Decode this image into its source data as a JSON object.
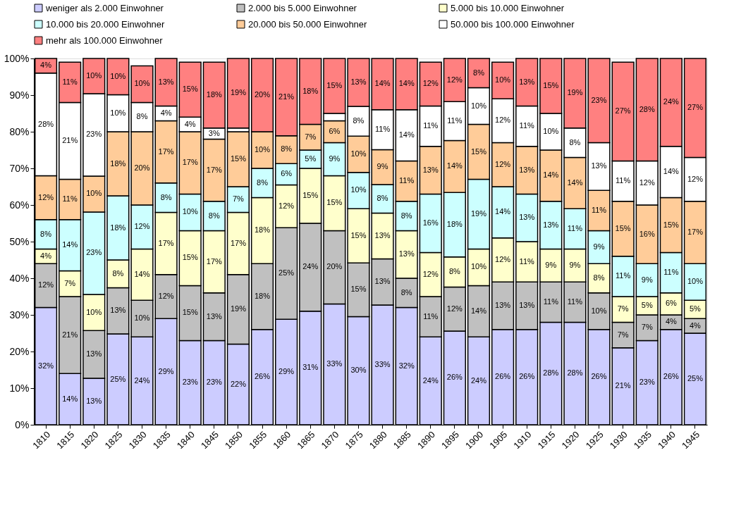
{
  "chart_data": {
    "type": "bar",
    "stacked": true,
    "legend": "top",
    "categories": [
      "1810",
      "1815",
      "1820",
      "1825",
      "1830",
      "1835",
      "1840",
      "1845",
      "1850",
      "1855",
      "1860",
      "1865",
      "1870",
      "1875",
      "1880",
      "1885",
      "1890",
      "1895",
      "1900",
      "1905",
      "1910",
      "1915",
      "1920",
      "1925",
      "1930",
      "1935",
      "1940",
      "1945"
    ],
    "ylim": [
      0,
      100
    ],
    "yticks": [
      {
        "value": 0,
        "label": "0%"
      },
      {
        "value": 10,
        "label": "10%"
      },
      {
        "value": 20,
        "label": "20%"
      },
      {
        "value": 30,
        "label": "30%"
      },
      {
        "value": 40,
        "label": "40%"
      },
      {
        "value": 50,
        "label": "50%"
      },
      {
        "value": 60,
        "label": "60%"
      },
      {
        "value": 70,
        "label": "70%"
      },
      {
        "value": 80,
        "label": "80%"
      },
      {
        "value": 90,
        "label": "90%"
      },
      {
        "value": 100,
        "label": "100%"
      }
    ],
    "series": [
      {
        "name": "weniger als 2.000 Einwohner",
        "color": "#ccccff",
        "values": [
          32,
          14,
          12.7,
          24.8,
          24,
          29,
          23,
          23,
          22,
          26,
          28.8,
          31,
          33,
          29.5,
          32.7,
          32,
          24,
          25.6,
          24,
          26,
          26,
          28,
          28,
          26,
          21,
          23,
          26,
          25
        ],
        "value_labels": [
          "32%",
          "14%",
          "13%",
          "25%",
          "24%",
          "29%",
          "23%",
          "23%",
          "22%",
          "26%",
          "29%",
          "31%",
          "33%",
          "30%",
          "33%",
          "32%",
          "24%",
          "26%",
          "24%",
          "26%",
          "26%",
          "28%",
          "28%",
          "26%",
          "21%",
          "23%",
          "26%",
          "25%"
        ]
      },
      {
        "name": "2.000 bis 5.000 Einwohner",
        "color": "#c0c0c0",
        "values": [
          12,
          21,
          13,
          12.6,
          10,
          12,
          15,
          13,
          19,
          18,
          25,
          24,
          20,
          14.7,
          12.6,
          8,
          11,
          12,
          14,
          13,
          13,
          11,
          11,
          10,
          7,
          7,
          4,
          4
        ],
        "value_labels": [
          "12%",
          "21%",
          "13%",
          "13%",
          "10%",
          "12%",
          "15%",
          "13%",
          "19%",
          "18%",
          "25%",
          "24%",
          "20%",
          "15%",
          "13%",
          "8%",
          "11%",
          "12%",
          "14%",
          "13%",
          "13%",
          "11%",
          "11%",
          "10%",
          "7%",
          "7%",
          "4%",
          "4%"
        ]
      },
      {
        "name": "5.000 bis 10.000 Einwohner",
        "color": "#ffffcc",
        "values": [
          4,
          7,
          9.9,
          7.6,
          14,
          17,
          15,
          17,
          17,
          18,
          11.7,
          15,
          15,
          14.8,
          12.5,
          13,
          12,
          8.2,
          10,
          12,
          11,
          9,
          9,
          8,
          7,
          5,
          6,
          5
        ],
        "value_labels": [
          "4%",
          "7%",
          "10%",
          "8%",
          "14%",
          "17%",
          "15%",
          "17%",
          "17%",
          "18%",
          "12%",
          "15%",
          "15%",
          "15%",
          "13%",
          "13%",
          "12%",
          "8%",
          "10%",
          "12%",
          "11%",
          "9%",
          "9%",
          "8%",
          "7%",
          "5%",
          "6%",
          "5%"
        ]
      },
      {
        "name": "10.000 bis 20.000 Einwohner",
        "color": "#ccffff",
        "values": [
          8,
          14,
          22.5,
          17.5,
          12,
          8,
          10,
          8,
          7,
          8,
          5.8,
          5,
          9,
          9.9,
          7.8,
          8,
          16,
          17.6,
          19,
          14,
          13,
          13,
          11,
          9,
          11,
          9,
          11,
          10
        ],
        "value_labels": [
          "8%",
          "14%",
          "23%",
          "18%",
          "12%",
          "8%",
          "10%",
          "8%",
          "7%",
          "8%",
          "6%",
          "5%",
          "9%",
          "10%",
          "8%",
          "8%",
          "16%",
          "18%",
          "19%",
          "14%",
          "13%",
          "13%",
          "11%",
          "9%",
          "11%",
          "9%",
          "11%",
          "10%"
        ]
      },
      {
        "name": "20.000 bis 50.000 Einwohner",
        "color": "#ffcc99",
        "values": [
          12,
          11,
          9.8,
          17.5,
          20,
          17,
          17,
          17,
          15,
          10,
          7.6,
          7,
          6,
          9.9,
          9.5,
          11,
          13,
          14.2,
          15,
          12,
          13,
          14,
          14,
          11,
          15,
          16,
          15,
          17
        ],
        "value_labels": [
          "12%",
          "11%",
          "10%",
          "18%",
          "20%",
          "17%",
          "17%",
          "17%",
          "15%",
          "10%",
          "8%",
          "7%",
          "6%",
          "10%",
          "9%",
          "11%",
          "13%",
          "14%",
          "15%",
          "12%",
          "13%",
          "14%",
          "14%",
          "11%",
          "15%",
          "16%",
          "15%",
          "17%"
        ]
      },
      {
        "name": "50.000 bis 100.000 Einwohner",
        "color": "#ffffff",
        "values": [
          28,
          21,
          22.5,
          10.1,
          8,
          4,
          4,
          3,
          1,
          null,
          null,
          null,
          2,
          8.1,
          10.9,
          14,
          11,
          10.6,
          10,
          12,
          11,
          10,
          8,
          13,
          11,
          12,
          14,
          12
        ],
        "value_labels": [
          "28%",
          "21%",
          "23%",
          "10%",
          "8%",
          "4%",
          "4%",
          "3%",
          null,
          null,
          null,
          null,
          null,
          "8%",
          "11%",
          "14%",
          "11%",
          "11%",
          "10%",
          "12%",
          "11%",
          "10%",
          "8%",
          "13%",
          "11%",
          "12%",
          "14%",
          "12%"
        ]
      },
      {
        "name": "mehr als 100.000 Einwohner",
        "color": "#ff8080",
        "values": [
          4,
          11,
          9.6,
          9.9,
          10,
          13,
          15,
          18,
          19,
          20,
          21.1,
          18,
          15,
          13.1,
          14,
          14,
          12,
          11.8,
          8,
          10,
          13,
          15,
          19,
          23,
          27,
          28,
          24,
          27
        ],
        "value_labels": [
          "4%",
          "11%",
          "10%",
          "10%",
          "10%",
          "13%",
          "15%",
          "18%",
          "19%",
          "20%",
          "21%",
          "18%",
          "15%",
          "13%",
          "14%",
          "14%",
          "12%",
          "12%",
          "8%",
          "10%",
          "13%",
          "15%",
          "19%",
          "23%",
          "27%",
          "28%",
          "24%",
          "27%"
        ]
      }
    ]
  }
}
